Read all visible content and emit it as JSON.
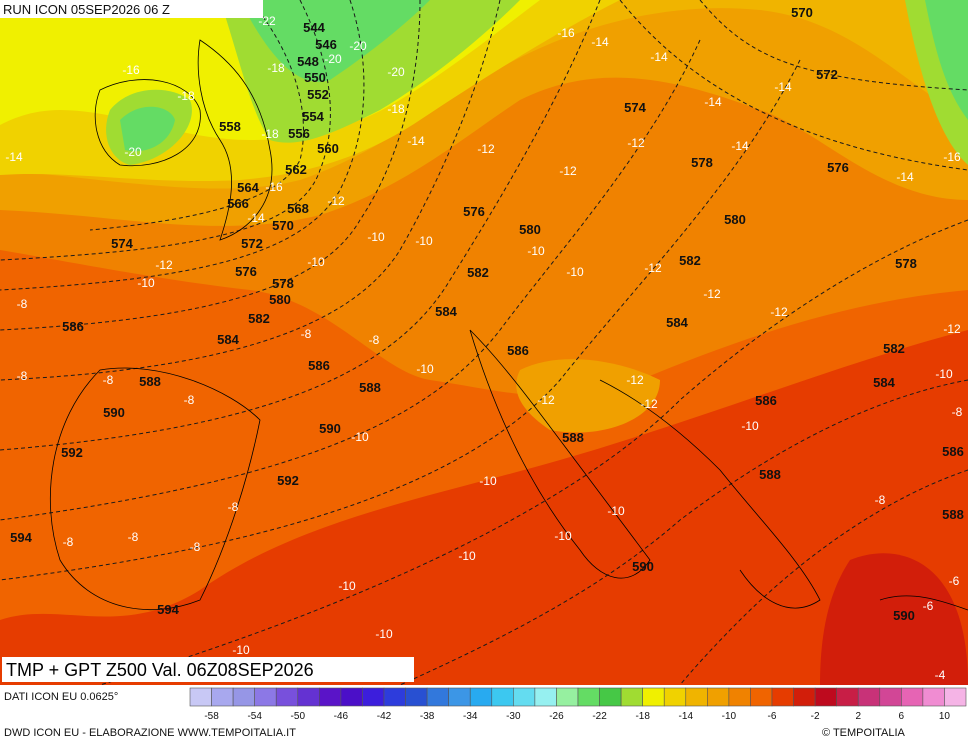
{
  "header": {
    "run": "RUN ICON 05SEP2026 06 Z"
  },
  "map": {
    "title": "TMP + GPT Z500 Val. 06Z08SEP2026",
    "gpt_labels": [
      544,
      546,
      548,
      550,
      552,
      554,
      556,
      558,
      560,
      562,
      564,
      566,
      568,
      570,
      572,
      574,
      576,
      578,
      580,
      582,
      584,
      586,
      586,
      588,
      588,
      590,
      590,
      592,
      592,
      594,
      594,
      570,
      572,
      574,
      576,
      578,
      576,
      580,
      580,
      582,
      582,
      578,
      584,
      584,
      586,
      582,
      584,
      586,
      588,
      588,
      586,
      588,
      590,
      590
    ],
    "tmp_labels": [
      -22,
      -20,
      -20,
      -18,
      -20,
      -18,
      -18,
      -16,
      -20,
      -18,
      -14,
      -16,
      -14,
      -12,
      -14,
      -12,
      -12,
      -16,
      -14,
      -14,
      -14,
      -14,
      -12,
      -14,
      -16,
      -14,
      -10,
      -10,
      -10,
      -12,
      -10,
      -10,
      -10,
      -12,
      -12,
      -12,
      -12,
      -8,
      -8,
      -8,
      -10,
      -8,
      -8,
      -8,
      -12,
      -12,
      -12,
      -10,
      -8,
      -10,
      -10,
      -10,
      -8,
      -8,
      -8,
      -8,
      -10,
      -10,
      -10,
      -8,
      -10,
      -10,
      -10,
      -6,
      -6,
      -4
    ]
  },
  "legend": {
    "source": "DATI ICON EU 0.0625°",
    "ticks": [
      -58,
      -54,
      -50,
      -46,
      -42,
      -38,
      -34,
      -30,
      -26,
      -22,
      -18,
      -14,
      -10,
      -6,
      -2,
      2,
      6,
      10
    ]
  },
  "footer": {
    "credit": "DWD ICON EU - ELABORAZIONE WWW.TEMPOITALIA.IT",
    "brand": "© TEMPOITALIA"
  }
}
